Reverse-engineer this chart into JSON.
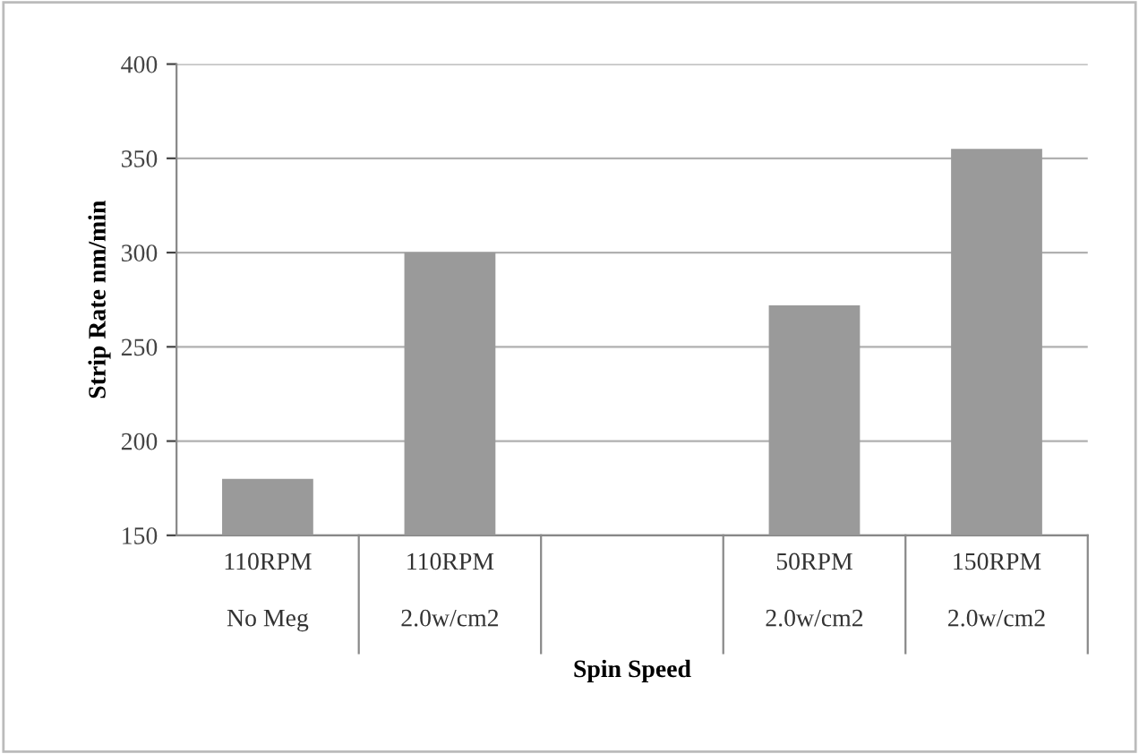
{
  "chart_data": {
    "type": "bar",
    "categories": [
      "110RPM\nNo Meg",
      "110RPM\n2.0w/cm2",
      null,
      "50RPM\n2.0w/cm2",
      "150RPM\n2.0w/cm2"
    ],
    "values": [
      180,
      300,
      null,
      272,
      355
    ],
    "color": "#9a9a9a",
    "xlabel": "Spin Speed",
    "ylabel": "Strip Rate nm/min",
    "ylim": [
      150,
      400
    ],
    "yticks": [
      150,
      200,
      250,
      300,
      350,
      400
    ],
    "grid": "y",
    "legend": false
  }
}
